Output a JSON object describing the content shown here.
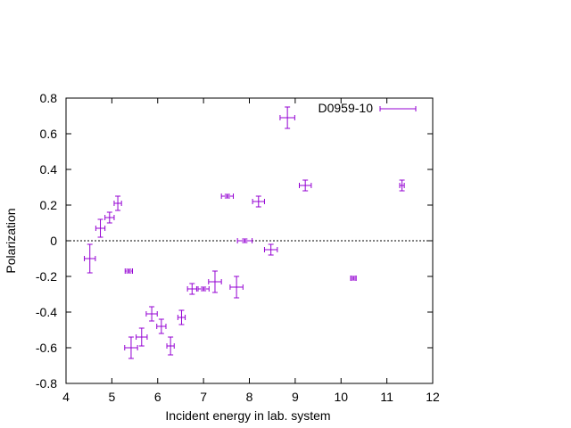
{
  "chart_data": {
    "type": "scatter",
    "title": "",
    "xlabel": "Incident energy in lab. system",
    "ylabel": "Polarization",
    "xlim": [
      4,
      12
    ],
    "ylim": [
      -0.8,
      0.8
    ],
    "x_ticks": [
      "4",
      "5",
      "6",
      "7",
      "8",
      "9",
      "10",
      "11",
      "12"
    ],
    "y_ticks": [
      "-0.8",
      "-0.6",
      "-0.4",
      "-0.2",
      "0",
      "0.2",
      "0.4",
      "0.6",
      "0.8"
    ],
    "zero_line": true,
    "grid": false,
    "legend_position": "top-right",
    "series": [
      {
        "name": "D0959-10",
        "color": "#9400d3",
        "points": [
          {
            "x": 4.52,
            "y": -0.1,
            "xerr": 0.12,
            "yerr": 0.08
          },
          {
            "x": 4.75,
            "y": 0.07,
            "xerr": 0.1,
            "yerr": 0.05
          },
          {
            "x": 4.95,
            "y": 0.13,
            "xerr": 0.1,
            "yerr": 0.03
          },
          {
            "x": 5.13,
            "y": 0.21,
            "xerr": 0.08,
            "yerr": 0.04
          },
          {
            "x": 5.37,
            "y": -0.17,
            "xerr": 0.08,
            "yerr": 0.01
          },
          {
            "x": 5.42,
            "y": -0.6,
            "xerr": 0.14,
            "yerr": 0.06
          },
          {
            "x": 5.65,
            "y": -0.54,
            "xerr": 0.12,
            "yerr": 0.05
          },
          {
            "x": 5.87,
            "y": -0.41,
            "xerr": 0.12,
            "yerr": 0.04
          },
          {
            "x": 6.08,
            "y": -0.48,
            "xerr": 0.1,
            "yerr": 0.04
          },
          {
            "x": 6.28,
            "y": -0.59,
            "xerr": 0.08,
            "yerr": 0.05
          },
          {
            "x": 6.52,
            "y": -0.43,
            "xerr": 0.08,
            "yerr": 0.04
          },
          {
            "x": 6.75,
            "y": -0.27,
            "xerr": 0.1,
            "yerr": 0.03
          },
          {
            "x": 7.0,
            "y": -0.27,
            "xerr": 0.12,
            "yerr": 0.01
          },
          {
            "x": 7.25,
            "y": -0.23,
            "xerr": 0.14,
            "yerr": 0.06
          },
          {
            "x": 7.52,
            "y": 0.25,
            "xerr": 0.13,
            "yerr": 0.01
          },
          {
            "x": 7.72,
            "y": -0.26,
            "xerr": 0.14,
            "yerr": 0.06
          },
          {
            "x": 7.9,
            "y": 0.0,
            "xerr": 0.16,
            "yerr": 0.01
          },
          {
            "x": 8.2,
            "y": 0.22,
            "xerr": 0.13,
            "yerr": 0.03
          },
          {
            "x": 8.47,
            "y": -0.05,
            "xerr": 0.14,
            "yerr": 0.03
          },
          {
            "x": 8.83,
            "y": 0.69,
            "xerr": 0.16,
            "yerr": 0.06
          },
          {
            "x": 9.22,
            "y": 0.31,
            "xerr": 0.13,
            "yerr": 0.03
          },
          {
            "x": 10.27,
            "y": -0.21,
            "xerr": 0.06,
            "yerr": 0.01
          },
          {
            "x": 11.33,
            "y": 0.31,
            "xerr": 0.05,
            "yerr": 0.03
          }
        ]
      }
    ]
  }
}
